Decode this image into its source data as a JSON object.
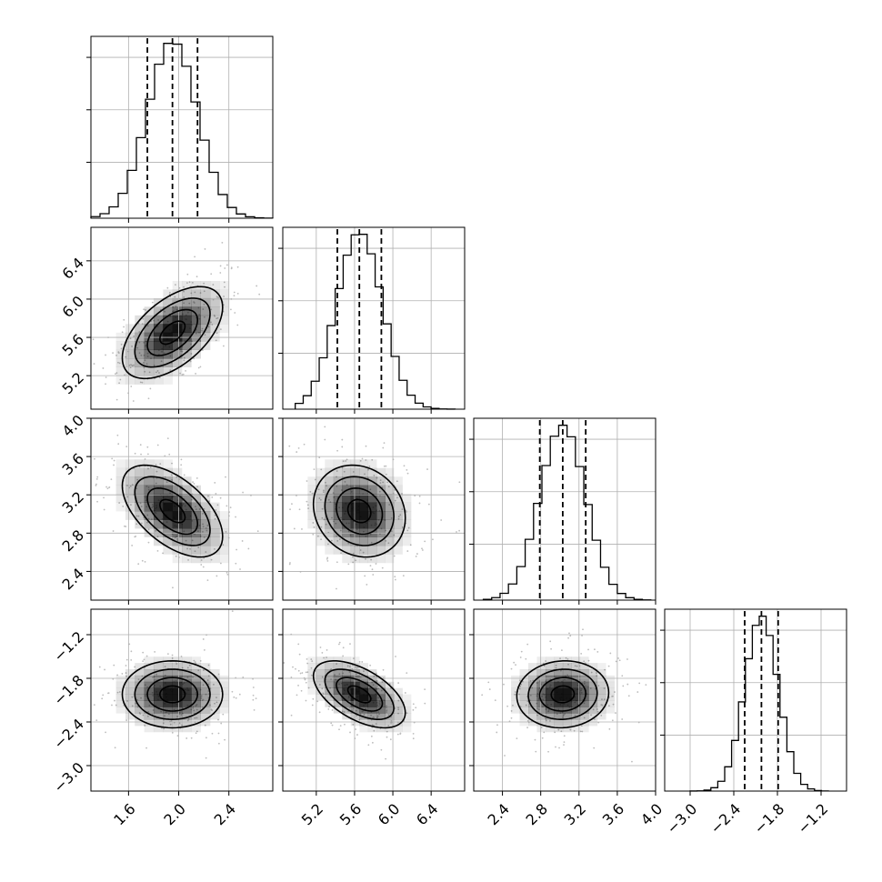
{
  "chart_data": {
    "type": "corner",
    "title": "",
    "parameters": [
      {
        "mean": 1.95,
        "std": 0.2,
        "hist_range": [
          1.3,
          2.75
        ],
        "range": [
          1.3,
          2.75
        ],
        "ticks": [
          1.6,
          2.0,
          2.4
        ],
        "tick_labels": [
          "1.6",
          "2.0",
          "2.4"
        ],
        "quantiles": [
          1.75,
          1.95,
          2.15
        ]
      },
      {
        "mean": 5.65,
        "std": 0.24,
        "hist_range": [
          4.98,
          6.65
        ],
        "range": [
          4.85,
          6.75
        ],
        "ticks": [
          5.2,
          5.6,
          6.0,
          6.4
        ],
        "tick_labels": [
          "5.2",
          "5.6",
          "6.0",
          "6.4"
        ],
        "quantiles": [
          5.42,
          5.65,
          5.88
        ]
      },
      {
        "mean": 3.03,
        "std": 0.24,
        "hist_range": [
          2.2,
          3.95
        ],
        "range": [
          2.1,
          4.0
        ],
        "ticks": [
          2.4,
          2.8,
          3.2,
          3.6,
          4.0
        ],
        "tick_labels": [
          "2.4",
          "2.8",
          "3.2",
          "3.6",
          "4.0"
        ],
        "quantiles": [
          2.79,
          3.03,
          3.27
        ]
      },
      {
        "mean": -2.02,
        "std": 0.23,
        "hist_range": [
          -3.0,
          -1.1
        ],
        "range": [
          -3.35,
          -0.85
        ],
        "ticks": [
          -3.0,
          -2.4,
          -1.8,
          -1.2
        ],
        "tick_labels": [
          "−3.0",
          "−2.4",
          "−1.8",
          "−1.2"
        ],
        "quantiles": [
          -2.25,
          -2.02,
          -1.79
        ]
      }
    ],
    "correlations": {
      "1-0": 0.55,
      "2-0": -0.55,
      "2-1": -0.15,
      "3-0": 0.0,
      "3-1": -0.55,
      "3-2": 0.05
    },
    "histogram_bins": 20,
    "contour_levels_sigma": [
      0.5,
      1.0,
      1.5,
      2.0
    ],
    "quantile_levels": [
      0.16,
      0.5,
      0.84
    ],
    "scatter_points_per_panel": 260,
    "grid": true,
    "colors": {
      "line": "#000000",
      "grid": "#b0b0b0",
      "points": "#bdbdbd",
      "density": "#000000"
    }
  }
}
